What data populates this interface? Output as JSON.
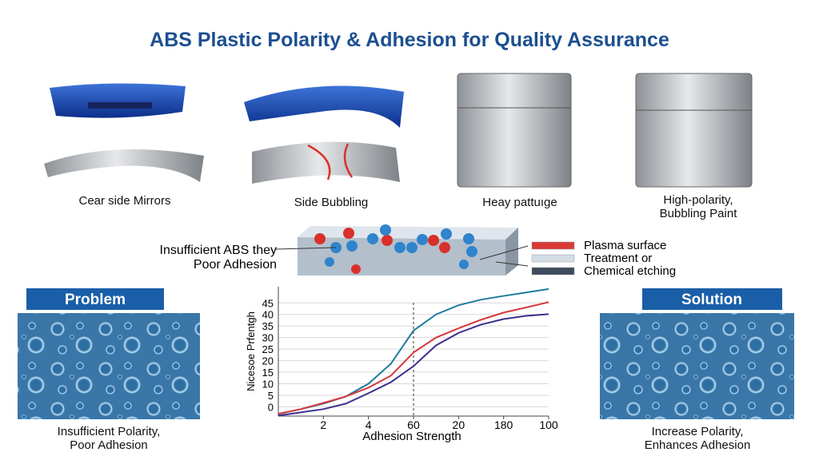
{
  "header": {
    "title": "ABS Plastic Polarity & Adhesion for Quality Assurance"
  },
  "products": [
    {
      "caption": [
        "Cear side Mirrors"
      ]
    },
    {
      "caption": [
        "Side Bubbling"
      ]
    },
    {
      "caption": [
        "Heay pattuıge"
      ]
    },
    {
      "caption": [
        "High-polarity,",
        "Bubbling Paint"
      ]
    }
  ],
  "surface_diagram": {
    "label": [
      "Insufficient ABS they",
      "Poor Adhesion"
    ],
    "legend": [
      {
        "label": "Plasma surface",
        "color": "#d93a36"
      },
      {
        "label": "Treatment or",
        "color": "#d3dde6"
      },
      {
        "label": "Chemical etching",
        "color": "#3d4b5c"
      }
    ]
  },
  "problem": {
    "badge": "Problem",
    "caption": [
      "Insufficient Polarity,",
      "Poor Adhesion"
    ]
  },
  "solution": {
    "badge": "Solution",
    "caption": [
      "Increase Polarity,",
      "Enhances Adhesion"
    ]
  },
  "chart_data": {
    "type": "line",
    "xlabel": "Adhesion Strength",
    "ylabel": "Nicesoe Prfentgh",
    "x": [
      0,
      0.5,
      1,
      1.5,
      2,
      2.5,
      3,
      3.5,
      4,
      4.5,
      5,
      5.5,
      6
    ],
    "xlim": [
      0,
      6
    ],
    "xticks": [
      {
        "value": 1,
        "label": "2"
      },
      {
        "value": 2,
        "label": "4"
      },
      {
        "value": 3,
        "label": "60"
      },
      {
        "value": 4,
        "label": "20"
      },
      {
        "value": 5,
        "label": "180"
      },
      {
        "value": 6,
        "label": "100"
      }
    ],
    "ylim": [
      -4,
      52
    ],
    "yticks": [
      0,
      5,
      10,
      15,
      20,
      25,
      30,
      35,
      40,
      45
    ],
    "grid": true,
    "vline": 3,
    "series": [
      {
        "color": "#1f7a9e",
        "values": [
          -3.1,
          -1,
          1.4,
          4.5,
          10,
          18.7,
          33,
          40,
          44,
          46.4,
          48,
          49.5,
          51
        ]
      },
      {
        "color": "#d6393d",
        "values": [
          -3,
          -1,
          1.7,
          4.5,
          8.3,
          13.5,
          23.5,
          30,
          34,
          37.7,
          40.8,
          43,
          45.3
        ]
      },
      {
        "color": "#3b2f8f",
        "values": [
          -3.8,
          -2.4,
          -1,
          1.4,
          5.9,
          10.7,
          17.6,
          26.6,
          32,
          35.6,
          38,
          39.4,
          40.1
        ]
      }
    ]
  }
}
